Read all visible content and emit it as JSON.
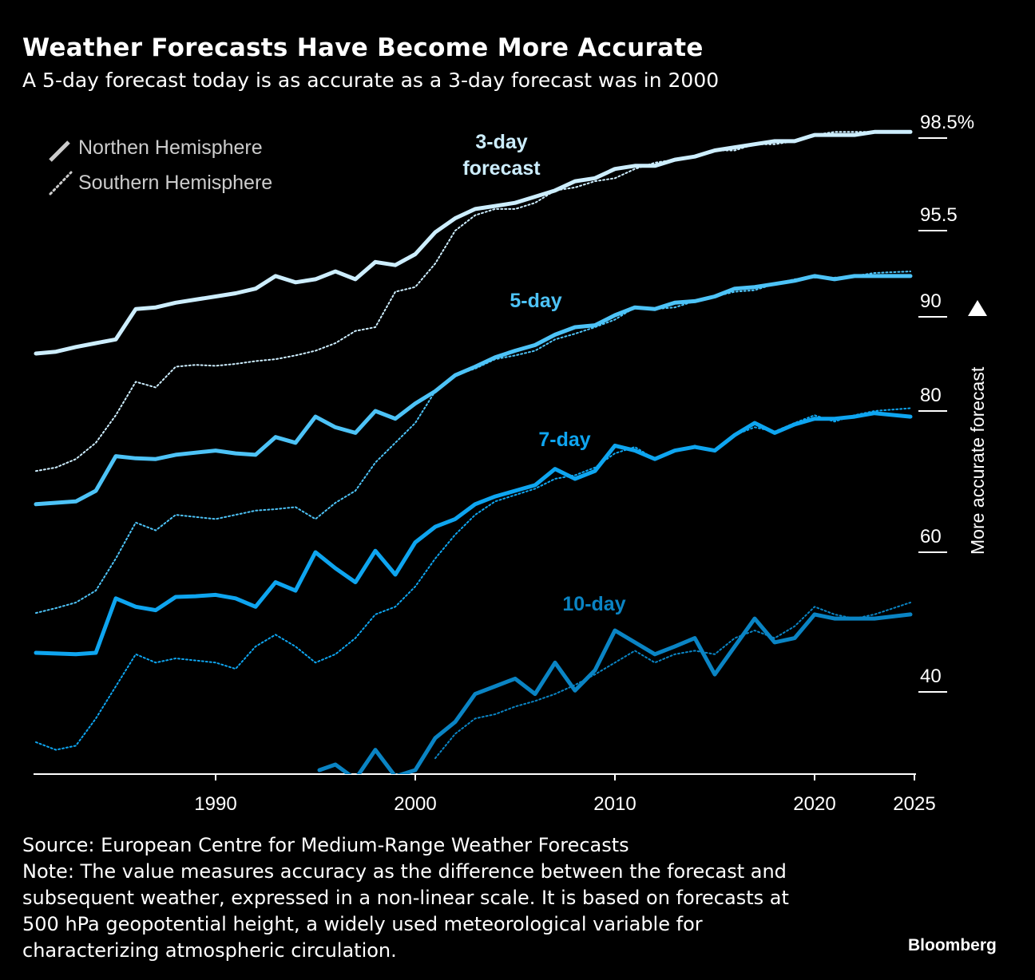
{
  "title": "Weather Forecasts Have Become More Accurate",
  "subtitle": "A 5-day forecast today is as accurate as a 3-day forecast was in 2000",
  "source": "Source: European Centre for Medium-Range Weather Forecasts",
  "note": "Note: The value measures accuracy as the difference between the forecast and subsequent weather, expressed in a non-linear scale. It is based on forecasts at 500 hPa geopotential height, a widely used meteorological variable for characterizing atmospheric circulation.",
  "brand": "Bloomberg",
  "chart_data": {
    "type": "line",
    "ylabel": "More accurate forecast",
    "y_scale": "non-linear",
    "yticks": [
      {
        "value": 98.5,
        "label": "98.5%"
      },
      {
        "value": 95.5,
        "label": "95.5"
      },
      {
        "value": 90,
        "label": "90"
      },
      {
        "value": 80,
        "label": "80"
      },
      {
        "value": 60,
        "label": "60"
      },
      {
        "value": 40,
        "label": "40"
      }
    ],
    "xticks": [
      1990,
      2000,
      2010,
      2020,
      2025
    ],
    "xlim": [
      1981,
      2024.9
    ],
    "legend": {
      "placement": "top-left",
      "entries": [
        {
          "label": "Northen Hemisphere",
          "style": "solid"
        },
        {
          "label": "Southern Hemisphere",
          "style": "dotted"
        }
      ]
    },
    "groups": [
      {
        "label_line1": "3-day",
        "label_line2": "forecast",
        "color": "#cdeeff",
        "nh": {
          "x": [
            1981,
            1982,
            1983,
            1984,
            1985,
            1986,
            1987,
            1988,
            1989,
            1990,
            1991,
            1992,
            1993,
            1994,
            1995,
            1996,
            1997,
            1998,
            1999,
            2000,
            2001,
            2002,
            2003,
            2004,
            2005,
            2006,
            2007,
            2008,
            2009,
            2010,
            2011,
            2012,
            2013,
            2014,
            2015,
            2016,
            2017,
            2018,
            2019,
            2020,
            2021,
            2022,
            2023,
            2024.8
          ],
          "y": [
            86.1,
            86.3,
            86.8,
            87.2,
            87.6,
            90.5,
            90.6,
            90.9,
            91.1,
            91.3,
            91.5,
            91.8,
            92.6,
            92.2,
            92.4,
            92.9,
            92.4,
            93.5,
            93.3,
            94.0,
            95.4,
            95.9,
            96.2,
            96.3,
            96.4,
            96.6,
            96.8,
            97.1,
            97.2,
            97.5,
            97.6,
            97.6,
            97.8,
            97.9,
            98.1,
            98.2,
            98.3,
            98.4,
            98.4,
            98.6,
            98.6,
            98.6,
            98.7,
            98.7
          ]
        },
        "sh": {
          "x": [
            1981,
            1982,
            1983,
            1984,
            1985,
            1986,
            1987,
            1988,
            1989,
            1990,
            1991,
            1992,
            1993,
            1994,
            1995,
            1996,
            1997,
            1998,
            1999,
            2000,
            2001,
            2002,
            2003,
            2004,
            2005,
            2006,
            2007,
            2008,
            2009,
            2010,
            2011,
            2012,
            2013,
            2014,
            2015,
            2016,
            2017,
            2018,
            2019,
            2020,
            2021,
            2022,
            2023,
            2024.8
          ],
          "y": [
            71.5,
            72.0,
            73.2,
            75.5,
            79.4,
            83.1,
            82.5,
            84.7,
            84.9,
            84.8,
            85.0,
            85.3,
            85.5,
            85.9,
            86.4,
            87.2,
            88.5,
            88.9,
            91.6,
            91.9,
            93.4,
            95.5,
            96.0,
            96.2,
            96.2,
            96.4,
            96.8,
            96.9,
            97.1,
            97.2,
            97.5,
            97.7,
            97.8,
            97.9,
            98.1,
            98.1,
            98.3,
            98.3,
            98.4,
            98.6,
            98.7,
            98.7,
            98.7,
            98.7
          ]
        }
      },
      {
        "label_line1": "5-day",
        "label_line2": "",
        "color": "#4dc3f7",
        "nh": {
          "x": [
            1981,
            1982,
            1983,
            1984,
            1985,
            1986,
            1987,
            1988,
            1989,
            1990,
            1991,
            1992,
            1993,
            1994,
            1995,
            1996,
            1997,
            1998,
            1999,
            2000,
            2001,
            2002,
            2003,
            2004,
            2005,
            2006,
            2007,
            2008,
            2009,
            2010,
            2011,
            2012,
            2013,
            2014,
            2015,
            2016,
            2017,
            2018,
            2019,
            2020,
            2021,
            2022,
            2023,
            2024.8
          ],
          "y": [
            66.8,
            67.0,
            67.2,
            68.7,
            73.6,
            73.3,
            73.2,
            73.8,
            74.1,
            74.4,
            74.0,
            73.8,
            76.3,
            75.5,
            79.2,
            77.7,
            76.9,
            80.0,
            78.9,
            80.8,
            82.1,
            83.8,
            84.7,
            85.7,
            86.4,
            87.0,
            88.1,
            88.9,
            89.1,
            90.1,
            90.6,
            90.5,
            90.9,
            91.0,
            91.3,
            91.8,
            91.9,
            92.1,
            92.3,
            92.6,
            92.4,
            92.6,
            92.6,
            92.6
          ]
        },
        "sh": {
          "x": [
            1981,
            1982,
            1983,
            1984,
            1985,
            1986,
            1987,
            1988,
            1989,
            1990,
            1991,
            1992,
            1993,
            1994,
            1995,
            1996,
            1997,
            1998,
            1999,
            2000,
            2001,
            2002,
            2003,
            2004,
            2005,
            2006,
            2007,
            2008,
            2009,
            2010,
            2011,
            2012,
            2013,
            2014,
            2015,
            2016,
            2017,
            2018,
            2019,
            2020,
            2021,
            2022,
            2023,
            2024.8
          ],
          "y": [
            51.3,
            52.0,
            52.8,
            54.5,
            59.1,
            64.2,
            63.1,
            65.3,
            65.0,
            64.7,
            65.3,
            65.9,
            66.1,
            66.4,
            64.7,
            67.0,
            68.7,
            72.7,
            75.5,
            78.3,
            82.1,
            83.8,
            84.5,
            85.5,
            85.9,
            86.4,
            87.6,
            88.2,
            88.9,
            89.7,
            90.6,
            90.5,
            90.6,
            91.0,
            91.3,
            91.6,
            91.7,
            92.1,
            92.4,
            92.5,
            92.5,
            92.6,
            92.8,
            92.9
          ]
        }
      },
      {
        "label_line1": "7-day",
        "label_line2": "",
        "color": "#0ea5f0",
        "nh": {
          "x": [
            1981,
            1982,
            1983,
            1984,
            1985,
            1986,
            1987,
            1988,
            1989,
            1990,
            1991,
            1992,
            1993,
            1994,
            1995,
            1996,
            1997,
            1998,
            1999,
            2000,
            2001,
            2002,
            2003,
            2004,
            2005,
            2006,
            2007,
            2008,
            2009,
            2010,
            2011,
            2012,
            2013,
            2014,
            2015,
            2016,
            2017,
            2018,
            2019,
            2020,
            2021,
            2022,
            2023,
            2024.8
          ],
          "y": [
            45.6,
            45.5,
            45.4,
            45.6,
            53.4,
            52.2,
            51.7,
            53.6,
            53.7,
            53.9,
            53.4,
            52.2,
            55.7,
            54.5,
            60.0,
            57.7,
            55.7,
            60.2,
            56.8,
            61.4,
            63.6,
            64.7,
            66.8,
            67.9,
            68.7,
            69.5,
            71.8,
            70.4,
            71.5,
            75.1,
            74.4,
            73.2,
            74.4,
            74.9,
            74.4,
            76.6,
            78.3,
            76.9,
            78.1,
            78.9,
            78.9,
            79.2,
            79.7,
            79.2
          ]
        },
        "sh": {
          "x": [
            1981,
            1982,
            1983,
            1984,
            1985,
            1986,
            1987,
            1988,
            1989,
            1990,
            1991,
            1992,
            1993,
            1994,
            1995,
            1996,
            1997,
            1998,
            1999,
            2000,
            2001,
            2002,
            2003,
            2004,
            2005,
            2006,
            2007,
            2008,
            2009,
            2010,
            2011,
            2012,
            2013,
            2014,
            2015,
            2016,
            2017,
            2018,
            2019,
            2020,
            2021,
            2022,
            2023,
            2024.8
          ],
          "y": [
            32.8,
            31.7,
            32.3,
            36.2,
            40.8,
            45.4,
            44.2,
            44.8,
            44.5,
            44.2,
            43.3,
            46.5,
            48.2,
            46.5,
            44.2,
            45.4,
            47.7,
            51.1,
            52.2,
            55.1,
            59.1,
            62.5,
            65.3,
            67.2,
            68.1,
            69.0,
            70.4,
            70.9,
            72.0,
            74.0,
            74.9,
            73.2,
            74.4,
            75.1,
            74.4,
            76.6,
            77.7,
            77.1,
            78.3,
            79.4,
            78.5,
            79.4,
            80.0,
            80.3
          ]
        }
      },
      {
        "label_line1": "10-day",
        "label_line2": "",
        "color": "#0a84c4",
        "nh": {
          "x": [
            1995.2,
            1996,
            1997,
            1998,
            1999,
            2000,
            2001,
            2002,
            2003,
            2004,
            2005,
            2006,
            2007,
            2008,
            2009,
            2010,
            2011,
            2012,
            2013,
            2014,
            2015,
            2016,
            2017,
            2018,
            2019,
            2020,
            2021,
            2022,
            2023,
            2024.8
          ],
          "y": [
            28.8,
            29.6,
            27.5,
            31.7,
            27.9,
            28.8,
            33.4,
            35.7,
            39.7,
            40.8,
            41.9,
            39.7,
            44.2,
            40.2,
            43.1,
            48.8,
            47.1,
            45.4,
            46.5,
            47.7,
            42.5,
            46.5,
            50.5,
            47.1,
            47.7,
            51.1,
            50.5,
            50.5,
            50.5,
            51.1
          ]
        },
        "sh": {
          "x": [
            2001,
            2002,
            2003,
            2004,
            2005,
            2006,
            2007,
            2008,
            2009,
            2010,
            2011,
            2012,
            2013,
            2014,
            2015,
            2016,
            2017,
            2018,
            2019,
            2020,
            2021,
            2022,
            2023,
            2024.8
          ],
          "y": [
            30.5,
            34.0,
            36.2,
            36.8,
            37.9,
            38.7,
            39.7,
            41.0,
            42.5,
            44.2,
            45.9,
            44.2,
            45.4,
            45.9,
            45.4,
            47.7,
            48.8,
            47.7,
            49.4,
            52.2,
            51.1,
            50.5,
            51.1,
            52.8
          ]
        }
      }
    ]
  }
}
